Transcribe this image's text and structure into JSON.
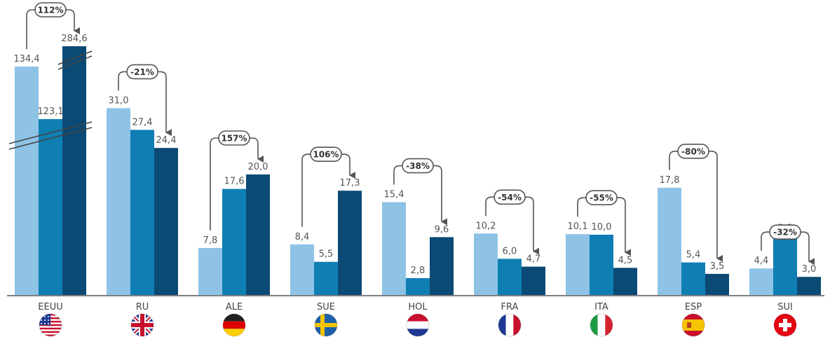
{
  "colors": {
    "series1": "#8ec3e6",
    "series2": "#0f7fb3",
    "series3": "#0b4a75",
    "arrow": "#555555",
    "axis": "#555555"
  },
  "chart_data": {
    "type": "bar",
    "categories": [
      "EEUU",
      "RU",
      "ALE",
      "SUE",
      "HOL",
      "FRA",
      "ITA",
      "ESP",
      "SUI"
    ],
    "series": [
      {
        "values": [
          134.4,
          31.0,
          7.8,
          8.4,
          15.4,
          10.2,
          10.1,
          17.8,
          4.4
        ]
      },
      {
        "values": [
          123.1,
          27.4,
          17.6,
          5.5,
          2.8,
          6.0,
          10.0,
          5.4,
          9.8
        ]
      },
      {
        "values": [
          284.6,
          24.4,
          20.0,
          17.3,
          9.6,
          4.7,
          4.5,
          3.5,
          3.0
        ]
      }
    ],
    "value_labels": [
      [
        "134,4",
        "31,0",
        "7,8",
        "8,4",
        "15,4",
        "10,2",
        "10,1",
        "17,8",
        "4,4"
      ],
      [
        "123,1",
        "27,4",
        "17,6",
        "5,5",
        "2,8",
        "6,0",
        "10,0",
        "5,4",
        "9,8"
      ],
      [
        "284,6",
        "24,4",
        "20,0",
        "17,3",
        "9,6",
        "4,7",
        "4,5",
        "3,5",
        "3,0"
      ]
    ],
    "change_labels": [
      "112%",
      "-21%",
      "157%",
      "106%",
      "-38%",
      "-54%",
      "-55%",
      "-80%",
      "-32%"
    ],
    "axis_break": "EEUU",
    "flags": [
      "flag-usa-icon",
      "flag-uk-icon",
      "flag-germany-icon",
      "flag-sweden-icon",
      "flag-netherlands-icon",
      "flag-france-icon",
      "flag-italy-icon",
      "flag-spain-icon",
      "flag-switzerland-icon"
    ]
  }
}
